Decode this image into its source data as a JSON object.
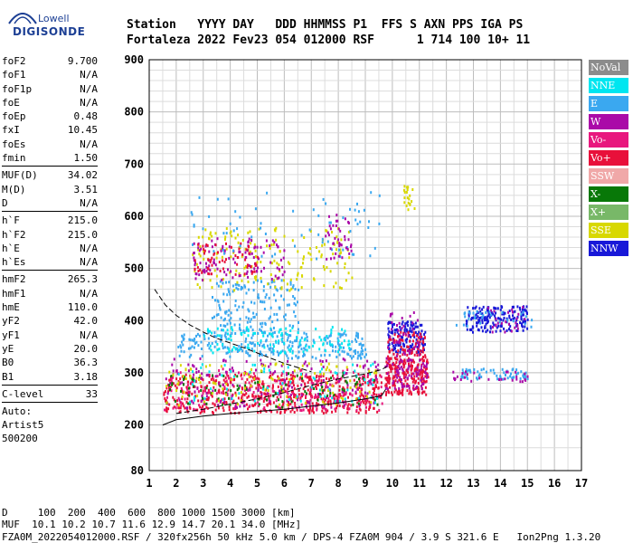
{
  "logo": {
    "line1": "Lowell",
    "line2": "DIGISONDE"
  },
  "header": {
    "labels": "Station   YYYY DAY   DDD HHMMSS P1  FFS S AXN PPS IGA PS",
    "values": "Fortaleza 2022 Fev23 054 012000 RSF      1 714 100 10+ 11"
  },
  "params": {
    "group1": [
      {
        "name": "foF2",
        "value": "9.700"
      },
      {
        "name": "foF1",
        "value": "N/A"
      },
      {
        "name": "foF1p",
        "value": "N/A"
      },
      {
        "name": "foE",
        "value": "N/A"
      },
      {
        "name": "foEp",
        "value": "0.48"
      },
      {
        "name": "fxI",
        "value": "10.45"
      },
      {
        "name": "foEs",
        "value": "N/A"
      },
      {
        "name": "fmin",
        "value": "1.50"
      }
    ],
    "group2": [
      {
        "name": "MUF(D)",
        "value": "34.02"
      },
      {
        "name": "M(D)",
        "value": "3.51"
      },
      {
        "name": "D",
        "value": "N/A"
      }
    ],
    "group3": [
      {
        "name": "h`F",
        "value": "215.0"
      },
      {
        "name": "h`F2",
        "value": "215.0"
      },
      {
        "name": "h`E",
        "value": "N/A"
      },
      {
        "name": "h`Es",
        "value": "N/A"
      }
    ],
    "group4": [
      {
        "name": "hmF2",
        "value": "265.3"
      },
      {
        "name": "hmF1",
        "value": "N/A"
      },
      {
        "name": "hmE",
        "value": "110.0"
      },
      {
        "name": "yF2",
        "value": "42.0"
      },
      {
        "name": "yF1",
        "value": "N/A"
      },
      {
        "name": "yE",
        "value": "20.0"
      },
      {
        "name": "B0",
        "value": "36.3"
      },
      {
        "name": "B1",
        "value": "3.18"
      }
    ],
    "group5": [
      {
        "name": "C-level",
        "value": "33"
      }
    ],
    "auto_lines": [
      "Auto:",
      "Artist5",
      "500200"
    ]
  },
  "legend": [
    {
      "label": "NoVal",
      "color": "#8c8c8c"
    },
    {
      "label": "NNE",
      "color": "#00e6f0"
    },
    {
      "label": "E",
      "color": "#3aa8f0"
    },
    {
      "label": "W",
      "color": "#aa0aa8"
    },
    {
      "label": "Vo-",
      "color": "#e8187e"
    },
    {
      "label": "Vo+",
      "color": "#e8103a"
    },
    {
      "label": "SSW",
      "color": "#f0a8a8"
    },
    {
      "label": "X-",
      "color": "#087808"
    },
    {
      "label": "X+",
      "color": "#78b868"
    },
    {
      "label": "SSE",
      "color": "#d8d800"
    },
    {
      "label": "NNW",
      "color": "#1818d8"
    }
  ],
  "footer": {
    "d_row": "D     100  200  400  600  800 1000 1500 3000 [km]",
    "muf_row": "MUF  10.1 10.2 10.7 11.6 12.9 14.7 20.1 34.0 [MHz]",
    "file_row": "FZA0M_2022054012000.RSF / 320fx256h 50 kHz 5.0 km / DPS-4 FZA0M 904 / 3.9 S 321.6 E   Ion2Png 1.3.20"
  },
  "chart_data": {
    "type": "scatter",
    "x_ticks": [
      "1",
      "2",
      "3",
      "4",
      "5",
      "6",
      "7",
      "8",
      "9",
      "10",
      "11",
      "12",
      "13",
      "14",
      "15",
      "16",
      "17"
    ],
    "y_ticks": [
      "80",
      "200",
      "300",
      "400",
      "500",
      "600",
      "700",
      "800",
      "900"
    ],
    "xlim": [
      1,
      17
    ],
    "y_ticks_values": [
      80,
      200,
      300,
      400,
      500,
      600,
      700,
      800,
      900
    ],
    "grid": true,
    "trace_solid": {
      "x": [
        1.5,
        2,
        3,
        4,
        5,
        6,
        7,
        8,
        9,
        9.6,
        9.75
      ],
      "y": [
        200,
        210,
        217,
        222,
        226,
        230,
        236,
        242,
        250,
        256,
        268
      ]
    },
    "trace_dashed_lower": {
      "x": [
        2,
        3,
        4,
        5,
        6,
        7,
        8,
        9,
        9.6,
        9.8
      ],
      "y": [
        222,
        230,
        240,
        250,
        262,
        276,
        288,
        298,
        306,
        312
      ]
    },
    "trace_dashed_upper": {
      "x": [
        1.2,
        1.6,
        2,
        2.5,
        3,
        3.5,
        4,
        4.5,
        5,
        5.5,
        6,
        6.5,
        7
      ],
      "y": [
        460,
        430,
        410,
        392,
        378,
        366,
        357,
        348,
        338,
        328,
        318,
        310,
        302
      ]
    },
    "clusters": [
      {
        "color": "#e8103a",
        "x": [
          1.5,
          9.6
        ],
        "y": [
          225,
          300
        ],
        "n": 560
      },
      {
        "color": "#e8187e",
        "x": [
          1.5,
          9.6
        ],
        "y": [
          230,
          310
        ],
        "n": 200
      },
      {
        "color": "#aa0aa8",
        "x": [
          1.5,
          9.6
        ],
        "y": [
          235,
          330
        ],
        "n": 160
      },
      {
        "color": "#087808",
        "x": [
          1.6,
          9.5
        ],
        "y": [
          235,
          305
        ],
        "n": 90
      },
      {
        "color": "#d8d800",
        "x": [
          1.6,
          9.5
        ],
        "y": [
          240,
          320
        ],
        "n": 110
      },
      {
        "color": "#00e6f0",
        "x": [
          2,
          9.5
        ],
        "y": [
          245,
          320
        ],
        "n": 70
      },
      {
        "color": "#3aa8f0",
        "x": [
          2,
          9
        ],
        "y": [
          330,
          380
        ],
        "n": 260
      },
      {
        "color": "#00e6f0",
        "x": [
          3,
          8.5
        ],
        "y": [
          340,
          390
        ],
        "n": 120
      },
      {
        "color": "#3aa8f0",
        "x": [
          3.3,
          6.5
        ],
        "y": [
          380,
          480
        ],
        "n": 160
      },
      {
        "color": "#d8d800",
        "x": [
          2.5,
          8.5
        ],
        "y": [
          460,
          580
        ],
        "n": 170
      },
      {
        "color": "#aa0aa8",
        "x": [
          2.6,
          6
        ],
        "y": [
          480,
          560
        ],
        "n": 110
      },
      {
        "color": "#e8103a",
        "x": [
          2.6,
          5
        ],
        "y": [
          490,
          550
        ],
        "n": 60
      },
      {
        "color": "#3aa8f0",
        "x": [
          2.5,
          9.5
        ],
        "y": [
          520,
          650
        ],
        "n": 70
      },
      {
        "color": "#aa0aa8",
        "x": [
          7.5,
          8.5
        ],
        "y": [
          520,
          610
        ],
        "n": 40
      },
      {
        "color": "#e8103a",
        "x": [
          9.7,
          11.3
        ],
        "y": [
          260,
          330
        ],
        "n": 220
      },
      {
        "color": "#aa0aa8",
        "x": [
          9.7,
          11.3
        ],
        "y": [
          270,
          330
        ],
        "n": 80
      },
      {
        "color": "#1818d8",
        "x": [
          9.8,
          11.2
        ],
        "y": [
          340,
          400
        ],
        "n": 140
      },
      {
        "color": "#e8103a",
        "x": [
          9.8,
          11.2
        ],
        "y": [
          330,
          380
        ],
        "n": 80
      },
      {
        "color": "#aa0aa8",
        "x": [
          9.8,
          11
        ],
        "y": [
          330,
          420
        ],
        "n": 40
      },
      {
        "color": "#d8d800",
        "x": [
          10.4,
          10.8
        ],
        "y": [
          615,
          660
        ],
        "n": 20
      },
      {
        "color": "#1818d8",
        "x": [
          12.7,
          15
        ],
        "y": [
          380,
          430
        ],
        "n": 170
      },
      {
        "color": "#3aa8f0",
        "x": [
          12.5,
          15
        ],
        "y": [
          290,
          310
        ],
        "n": 60
      },
      {
        "color": "#aa0aa8",
        "x": [
          12.2,
          15
        ],
        "y": [
          285,
          305
        ],
        "n": 30
      },
      {
        "color": "#aa0aa8",
        "x": [
          13.5,
          15
        ],
        "y": [
          380,
          430
        ],
        "n": 25
      },
      {
        "color": "#3aa8f0",
        "x": [
          12.3,
          15.3
        ],
        "y": [
          390,
          420
        ],
        "n": 30
      }
    ]
  }
}
